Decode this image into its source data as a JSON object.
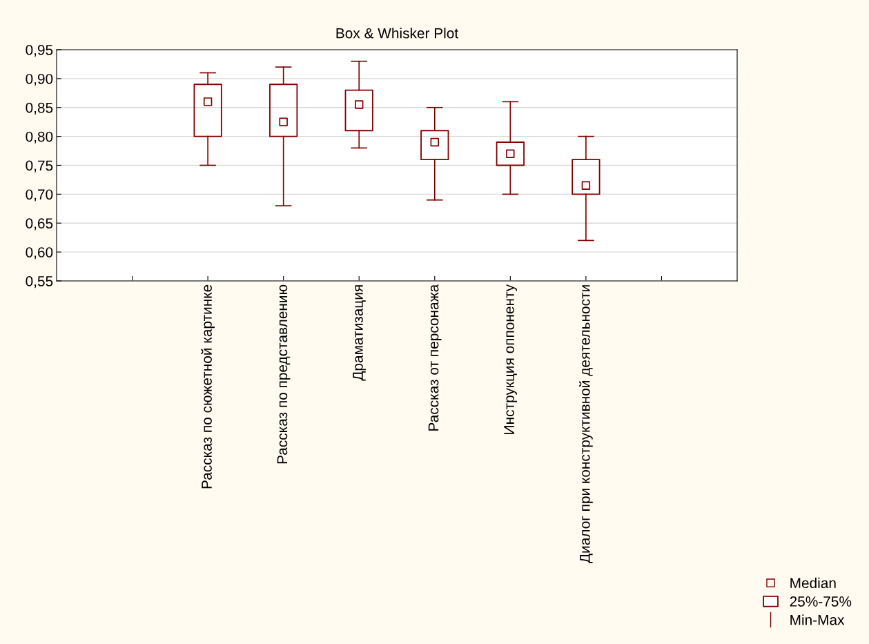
{
  "chart_data": {
    "type": "box",
    "title": "Box & Whisker Plot",
    "categories": [
      null,
      "Рассказ по сюжетной картинке",
      "Рассказ по представлению",
      "Драматизация",
      "Рассказ от персонажа",
      "Инструкция оппоненту",
      "Диалог при конструктивной деятельности",
      null
    ],
    "boxes": [
      null,
      {
        "low": 0.75,
        "q1": 0.8,
        "median": 0.86,
        "q3": 0.89,
        "high": 0.91
      },
      {
        "low": 0.68,
        "q1": 0.8,
        "median": 0.825,
        "q3": 0.89,
        "high": 0.92
      },
      {
        "low": 0.78,
        "q1": 0.81,
        "median": 0.855,
        "q3": 0.88,
        "high": 0.93
      },
      {
        "low": 0.69,
        "q1": 0.76,
        "median": 0.79,
        "q3": 0.81,
        "high": 0.85
      },
      {
        "low": 0.7,
        "q1": 0.75,
        "median": 0.77,
        "q3": 0.79,
        "high": 0.86
      },
      {
        "low": 0.62,
        "q1": 0.7,
        "median": 0.715,
        "q3": 0.76,
        "high": 0.8
      },
      null
    ],
    "color": "#800000",
    "ylim": [
      0.55,
      0.95
    ],
    "yticks": [
      {
        "value": 0.55,
        "label": "0,55"
      },
      {
        "value": 0.6,
        "label": "0,60"
      },
      {
        "value": 0.65,
        "label": "0,65"
      },
      {
        "value": 0.7,
        "label": "0,70"
      },
      {
        "value": 0.75,
        "label": "0,75"
      },
      {
        "value": 0.8,
        "label": "0,80"
      },
      {
        "value": 0.85,
        "label": "0,85"
      },
      {
        "value": 0.9,
        "label": "0,90"
      },
      {
        "value": 0.95,
        "label": "0,95"
      }
    ],
    "grid": "y",
    "marker": "square",
    "annotations": [
      "Median",
      "25%-75%",
      "Min-Max"
    ]
  }
}
